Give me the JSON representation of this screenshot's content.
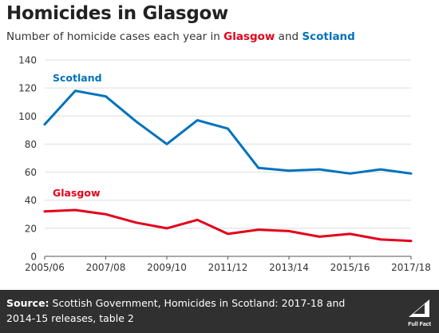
{
  "title": "Homicides in Glasgow",
  "subtitle": {
    "prefix": "Number of homicide cases each year in ",
    "highlight1": "Glasgow",
    "middle": " and ",
    "highlight2": "Scotland"
  },
  "colors": {
    "scotland": "#0072bc",
    "glasgow": "#e3001b",
    "footer_bg": "#303030"
  },
  "chart_data": {
    "type": "line",
    "x": [
      "2005/06",
      "2006/07",
      "2007/08",
      "2008/09",
      "2009/10",
      "2010/11",
      "2011/12",
      "2012/13",
      "2013/14",
      "2014/15",
      "2015/16",
      "2016/17",
      "2017/18"
    ],
    "x_tick_labels": [
      "2005/06",
      "2007/08",
      "2009/10",
      "2011/12",
      "2013/14",
      "2015/16",
      "2017/18"
    ],
    "series": [
      {
        "name": "Scotland",
        "color": "#0072bc",
        "values": [
          94,
          118,
          114,
          96,
          80,
          97,
          91,
          63,
          61,
          62,
          59,
          62,
          59
        ]
      },
      {
        "name": "Glasgow",
        "color": "#e3001b",
        "values": [
          32,
          33,
          30,
          24,
          20,
          26,
          16,
          19,
          18,
          14,
          16,
          12,
          11
        ]
      }
    ],
    "ylim": [
      0,
      140
    ],
    "y_ticks": [
      0,
      20,
      40,
      60,
      80,
      100,
      120,
      140
    ],
    "grid": true,
    "legend": "inline labels"
  },
  "footer": {
    "source_label": "Source:",
    "source_text": " Scottish Government, Homicides in Scotland: 2017-18 and 2014-15 releases, table 2",
    "brand": "Full Fact"
  }
}
